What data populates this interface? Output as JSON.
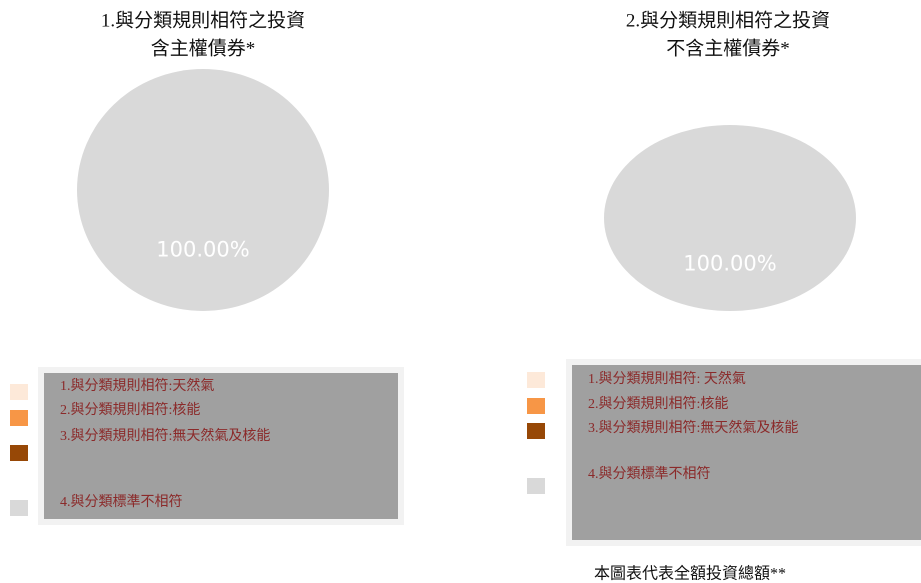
{
  "chart_data": [
    {
      "type": "pie",
      "title": "1.與分類規則相符之投資",
      "subtitle": "含主權債券*",
      "categories": [
        "1.與分類規則相符:天然氣",
        "2.與分類規則相符:核能",
        "3.與分類規則相符:無天然氣及核能",
        "4.與分類標準不相符"
      ],
      "values": [
        0,
        0,
        0,
        100
      ],
      "value_labels": [
        null,
        null,
        null,
        "100.00%"
      ],
      "colors": [
        "#fde9d9",
        "#f79646",
        "#974806",
        "#d9d9d9"
      ]
    },
    {
      "type": "pie",
      "title": "2.與分類規則相符之投資",
      "subtitle": "不含主權債券*",
      "categories": [
        "1.與分類規則相符: 天然氣",
        "2.與分類規則相符:核能",
        "3.與分類規則相符:無天然氣及核能",
        "4.與分類標準不相符"
      ],
      "values": [
        0,
        0,
        0,
        100
      ],
      "value_labels": [
        null,
        null,
        null,
        "100.00%"
      ],
      "colors": [
        "#fde9d9",
        "#f79646",
        "#974806",
        "#d9d9d9"
      ],
      "annotation": "本圖表代表全額投資總額**"
    }
  ]
}
